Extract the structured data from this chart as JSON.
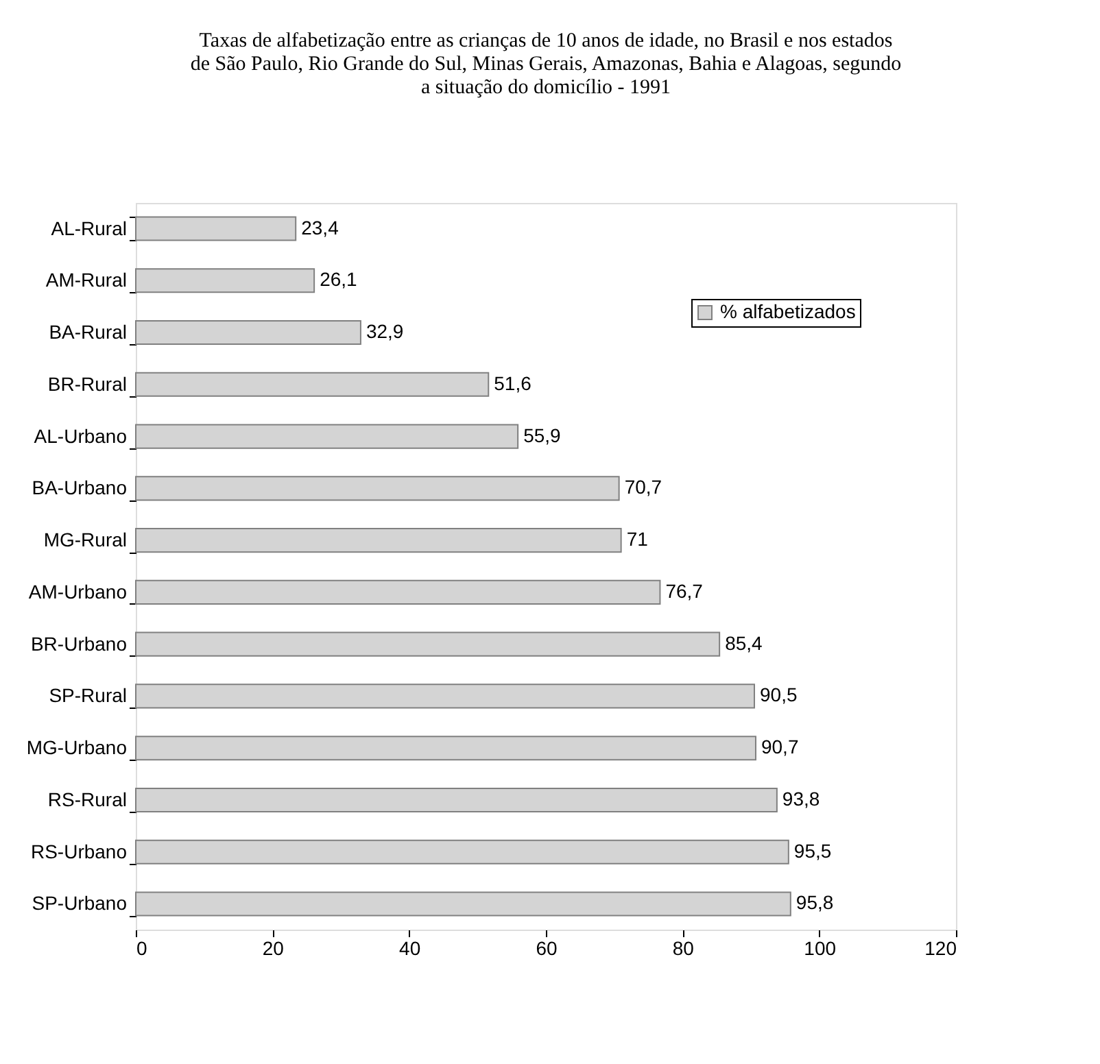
{
  "chart_data": {
    "type": "bar",
    "orientation": "horizontal",
    "title": "Taxas de alfabetização entre as crianças de 10 anos de idade, no Brasil e nos estados\nde São Paulo, Rio Grande do Sul, Minas Gerais, Amazonas, Bahia e Alagoas, segundo\na situação do domicílio - 1991",
    "categories": [
      "AL-Rural",
      "AM-Rural",
      "BA-Rural",
      "BR-Rural",
      "AL-Urbano",
      "BA-Urbano",
      "MG-Rural",
      "AM-Urbano",
      "BR-Urbano",
      "SP-Rural",
      "MG-Urbano",
      "RS-Rural",
      "RS-Urbano",
      "SP-Urbano"
    ],
    "series": [
      {
        "name": "% alfabetizados",
        "color": "#d4d4d4",
        "values": [
          23.4,
          26.1,
          32.9,
          51.6,
          55.9,
          70.7,
          71,
          76.7,
          85.4,
          90.5,
          90.7,
          93.8,
          95.5,
          95.8
        ],
        "value_labels": [
          "23,4",
          "26,1",
          "32,9",
          "51,6",
          "55,9",
          "70,7",
          "71",
          "76,7",
          "85,4",
          "90,5",
          "90,7",
          "93,8",
          "95,5",
          "95,8"
        ]
      }
    ],
    "xlim": [
      0,
      120
    ],
    "xticks": [
      0,
      20,
      40,
      60,
      80,
      100,
      120
    ],
    "grid": false,
    "legend": "top right"
  }
}
